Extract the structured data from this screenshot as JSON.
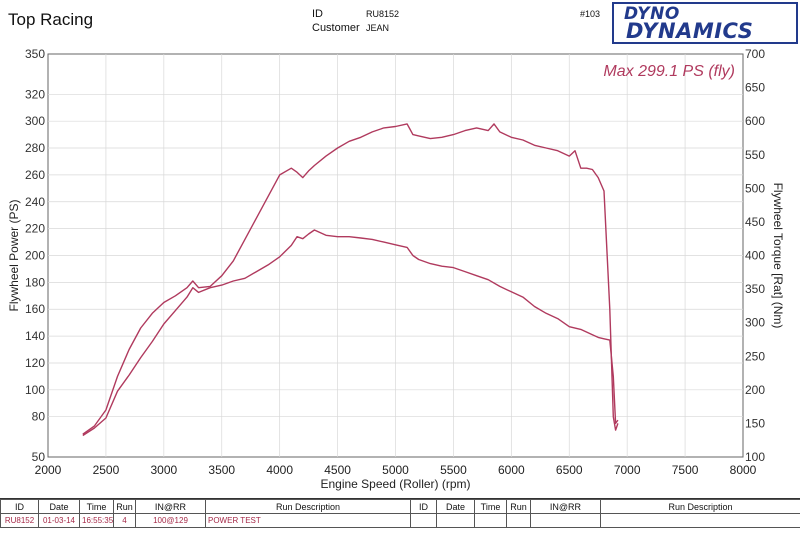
{
  "header": {
    "company": "Top Racing",
    "id_label": "ID",
    "id_value": "RU8152",
    "customer_label": "Customer",
    "customer_value": "JEAN",
    "record_no": "#103",
    "logo_line1": "DYNO",
    "logo_line2": "DYNAMICS"
  },
  "chart_data": {
    "type": "line",
    "title": "",
    "annotation": "Max 299.1 PS (fly)",
    "xlabel": "Engine Speed (Roller) (rpm)",
    "ylabel_left": "Flywheel Power (PS)",
    "ylabel_right": "Flywheel Torque [Rat] (Nm)",
    "xlim": [
      2000,
      8000
    ],
    "ylim_left": [
      50,
      350
    ],
    "ylim_right": [
      100,
      700
    ],
    "x_ticks": [
      2000,
      2500,
      3000,
      3500,
      4000,
      4500,
      5000,
      5500,
      6000,
      6500,
      7000,
      7500,
      8000
    ],
    "y_ticks_left": [
      50,
      80,
      100,
      120,
      140,
      160,
      180,
      200,
      220,
      240,
      260,
      280,
      300,
      320,
      350
    ],
    "y_ticks_right": [
      100,
      150,
      200,
      250,
      300,
      350,
      400,
      450,
      500,
      550,
      600,
      650,
      700
    ],
    "grid": true,
    "line_color": "#b03a5e",
    "series": [
      {
        "axis": "left",
        "x": [
          2300,
          2400,
          2500,
          2600,
          2700,
          2800,
          2900,
          3000,
          3100,
          3200,
          3250,
          3300,
          3400,
          3500,
          3600,
          3700,
          3800,
          3900,
          4000,
          4100,
          4150,
          4200,
          4250,
          4300,
          4400,
          4500,
          4600,
          4700,
          4800,
          4900,
          5000,
          5100,
          5150,
          5200,
          5300,
          5400,
          5500,
          5600,
          5700,
          5800,
          5850,
          5900,
          6000,
          6100,
          6200,
          6300,
          6400,
          6500,
          6550,
          6600,
          6650,
          6700,
          6750,
          6800,
          6850,
          6880,
          6900,
          6920
        ],
        "y": [
          67,
          73,
          85,
          110,
          130,
          146,
          157,
          165,
          170,
          176,
          181,
          176,
          177,
          185,
          196,
          212,
          228,
          244,
          260,
          265,
          262,
          258,
          263,
          267,
          274,
          280,
          285,
          288,
          292,
          295,
          296,
          298,
          290,
          289,
          287,
          288,
          290,
          293,
          295,
          293,
          298,
          292,
          288,
          286,
          282,
          280,
          278,
          274,
          278,
          265,
          265,
          264,
          258,
          248,
          160,
          80,
          70,
          75
        ]
      },
      {
        "axis": "right",
        "x": [
          2300,
          2400,
          2500,
          2600,
          2700,
          2800,
          2900,
          3000,
          3100,
          3200,
          3250,
          3300,
          3400,
          3500,
          3600,
          3700,
          3800,
          3900,
          4000,
          4100,
          4150,
          4200,
          4250,
          4300,
          4400,
          4500,
          4600,
          4700,
          4800,
          4900,
          5000,
          5100,
          5150,
          5200,
          5300,
          5400,
          5500,
          5600,
          5700,
          5800,
          5900,
          6000,
          6100,
          6200,
          6300,
          6400,
          6500,
          6600,
          6700,
          6750,
          6800,
          6850,
          6880,
          6900,
          6920
        ],
        "y": [
          132,
          143,
          158,
          198,
          222,
          248,
          272,
          298,
          318,
          338,
          352,
          345,
          352,
          356,
          362,
          366,
          376,
          386,
          398,
          415,
          428,
          425,
          432,
          438,
          430,
          428,
          428,
          426,
          424,
          420,
          416,
          412,
          400,
          394,
          388,
          384,
          382,
          376,
          370,
          364,
          354,
          346,
          338,
          324,
          314,
          306,
          294,
          290,
          282,
          278,
          276,
          274,
          220,
          150,
          155
        ]
      }
    ]
  },
  "run_table": {
    "headers": [
      "ID",
      "Date",
      "Time",
      "Run",
      "IN@RR",
      "Run Description",
      "ID",
      "Date",
      "Time",
      "Run",
      "IN@RR",
      "Run Description"
    ],
    "row": [
      "RU8152",
      "01-03-14",
      "16:55:35",
      "4",
      "100@129",
      "POWER TEST",
      "",
      "",
      "",
      "",
      "",
      ""
    ]
  }
}
